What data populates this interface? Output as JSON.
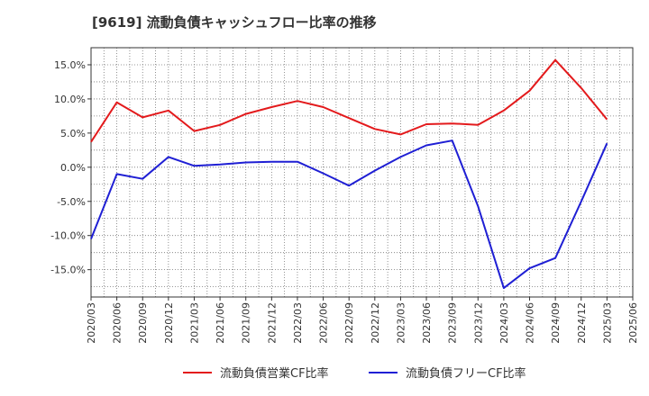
{
  "chart_data": {
    "type": "line",
    "title": "[9619]  流動負債キャッシュフロー比率の推移",
    "xlabel": "",
    "ylabel": "",
    "ylim": [
      -19.0,
      17.5
    ],
    "grid": true,
    "legend": "bottom",
    "y_ticks": [
      "15.0%",
      "10.0%",
      "5.0%",
      "0.0%",
      "-5.0%",
      "-10.0%",
      "-15.0%"
    ],
    "y_tick_values": [
      15,
      10,
      5,
      0,
      -5,
      -10,
      -15
    ],
    "x": [
      "2020/03",
      "2020/06",
      "2020/09",
      "2020/12",
      "2021/03",
      "2021/06",
      "2021/09",
      "2021/12",
      "2022/03",
      "2022/06",
      "2022/09",
      "2022/12",
      "2023/03",
      "2023/06",
      "2023/09",
      "2023/12",
      "2024/03",
      "2024/06",
      "2024/09",
      "2024/12",
      "2025/03",
      "2025/06"
    ],
    "series": [
      {
        "name": "流動負債営業CF比率",
        "color": "#e31a1c",
        "values": [
          3.7,
          9.5,
          7.3,
          8.3,
          5.3,
          6.2,
          7.8,
          8.8,
          9.7,
          8.8,
          7.2,
          5.6,
          4.8,
          6.3,
          6.4,
          6.2,
          8.3,
          11.2,
          15.7,
          11.6,
          7.0,
          null
        ]
      },
      {
        "name": "流動負債フリーCF比率",
        "color": "#1f1fd4",
        "values": [
          -10.5,
          -1.0,
          -1.7,
          1.5,
          0.2,
          0.4,
          0.7,
          0.8,
          0.8,
          -0.9,
          -2.7,
          -0.5,
          1.5,
          3.2,
          3.9,
          -5.7,
          -17.7,
          -14.8,
          -13.3,
          -5.0,
          3.5,
          null
        ]
      }
    ]
  }
}
